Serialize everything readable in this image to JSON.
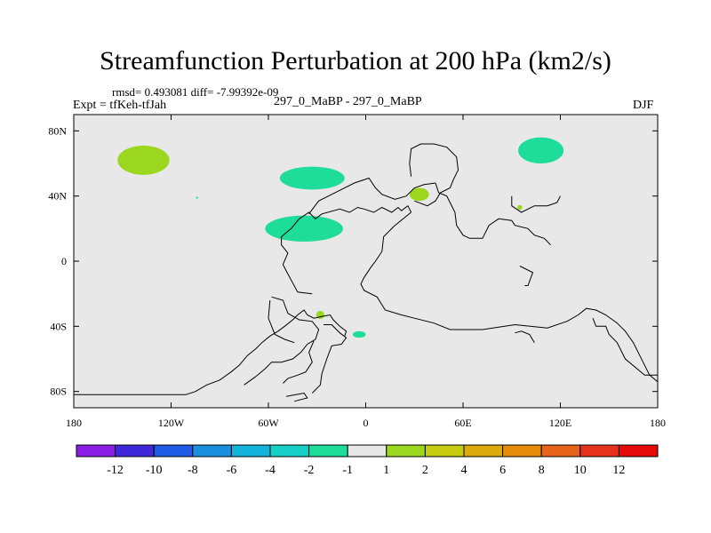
{
  "figure": {
    "title": "Streamfunction Perturbation at 200 hPa (km2/s)",
    "stats": "rmsd= 0.493081 diff= -7.99392e-09",
    "experiment": "Expt = tfKeh-tfJah",
    "runs": "297_0_MaBP - 297_0_MaBP",
    "season": "DJF"
  },
  "chart_data": {
    "type": "heatmap",
    "projection": "cylindrical-equidistant",
    "title": "Streamfunction Perturbation at 200 hPa (km2/s)",
    "xlim": [
      -180,
      180
    ],
    "ylim": [
      -90,
      90
    ],
    "x_ticks": [
      {
        "value": -180,
        "label": "180"
      },
      {
        "value": -120,
        "label": "120W"
      },
      {
        "value": -60,
        "label": "60W"
      },
      {
        "value": 0,
        "label": "0"
      },
      {
        "value": 60,
        "label": "60E"
      },
      {
        "value": 120,
        "label": "120E"
      },
      {
        "value": 180,
        "label": "180"
      }
    ],
    "y_ticks": [
      {
        "value": 80,
        "label": "80N"
      },
      {
        "value": 40,
        "label": "40N"
      },
      {
        "value": 0,
        "label": "0"
      },
      {
        "value": -40,
        "label": "40S"
      },
      {
        "value": -80,
        "label": "80S"
      }
    ],
    "background_color": "#e8e8e8",
    "colorbar": {
      "colors": [
        "#8a1ee6",
        "#3f28d9",
        "#1e5ae6",
        "#1a8fe0",
        "#12b4dc",
        "#16cfc6",
        "#1edc9a",
        "#e8e8e8",
        "#9ad71e",
        "#c8cc10",
        "#dcaa0a",
        "#e68c0a",
        "#e6641a",
        "#e6321a",
        "#e60a0a"
      ],
      "labels": [
        "-12",
        "-10",
        "-8",
        "-6",
        "-4",
        "-2",
        "-1",
        "1",
        "2",
        "4",
        "6",
        "8",
        "10",
        "12"
      ]
    },
    "anomalies": [
      {
        "lon": -137,
        "lat": 62,
        "rx": 16,
        "ry": 9,
        "level": "2",
        "color": "#9ad71e"
      },
      {
        "lon": -33,
        "lat": 51,
        "rx": 20,
        "ry": 7,
        "level": "-1",
        "color": "#1edc9a"
      },
      {
        "lon": -38,
        "lat": 20,
        "rx": 24,
        "ry": 8,
        "level": "-1",
        "color": "#1edc9a"
      },
      {
        "lon": 33,
        "lat": 41,
        "rx": 6,
        "ry": 4,
        "level": "2",
        "color": "#9ad71e"
      },
      {
        "lon": 108,
        "lat": 68,
        "rx": 14,
        "ry": 8,
        "level": "-1",
        "color": "#1edc9a"
      },
      {
        "lon": 95,
        "lat": 33,
        "rx": 1.5,
        "ry": 1.5,
        "level": "2",
        "color": "#9ad71e"
      },
      {
        "lon": -28,
        "lat": -33,
        "rx": 2.5,
        "ry": 2.5,
        "level": "2",
        "color": "#9ad71e"
      },
      {
        "lon": -4,
        "lat": -45,
        "rx": 4,
        "ry": 2,
        "level": "-1",
        "color": "#1edc9a"
      },
      {
        "lon": -104,
        "lat": 39,
        "rx": 0.7,
        "ry": 0.6,
        "level": "-1",
        "color": "#1edc9a"
      }
    ],
    "coastlines": [
      [
        [
          -180,
          -82
        ],
        [
          -111,
          -82
        ],
        [
          -105,
          -80
        ],
        [
          -98,
          -76
        ],
        [
          -90,
          -73
        ],
        [
          -83,
          -68
        ],
        [
          -78,
          -64
        ],
        [
          -73,
          -58
        ],
        [
          -68,
          -54
        ],
        [
          -64,
          -50
        ],
        [
          -59,
          -46
        ],
        [
          -54,
          -43
        ],
        [
          -50,
          -40
        ],
        [
          -45,
          -36
        ],
        [
          -42,
          -33
        ],
        [
          -38,
          -30
        ],
        [
          -36,
          -33
        ],
        [
          -32,
          -35
        ],
        [
          -27,
          -34
        ],
        [
          -22,
          -33
        ],
        [
          -20,
          -36
        ],
        [
          -16,
          -40
        ],
        [
          -12,
          -43
        ],
        [
          -13,
          -46
        ]
      ],
      [
        [
          -33,
          -20
        ],
        [
          -42,
          -19
        ],
        [
          -49,
          -6
        ],
        [
          -51,
          -2
        ],
        [
          -48,
          5
        ],
        [
          -52,
          10
        ],
        [
          -52,
          15
        ],
        [
          -46,
          20
        ],
        [
          -41,
          26
        ],
        [
          -35,
          30
        ],
        [
          -31,
          26
        ],
        [
          -27,
          29
        ],
        [
          -16,
          32
        ],
        [
          -10,
          30
        ],
        [
          -5,
          33
        ],
        [
          -1,
          32
        ],
        [
          5,
          30
        ],
        [
          10,
          33
        ],
        [
          16,
          30
        ],
        [
          20,
          33
        ],
        [
          22,
          31
        ],
        [
          26,
          34
        ],
        [
          28,
          30
        ]
      ],
      [
        [
          -35,
          29
        ],
        [
          -29,
          37
        ],
        [
          -17,
          43
        ],
        [
          -7,
          48
        ],
        [
          2,
          51
        ],
        [
          6,
          45
        ],
        [
          10,
          41
        ],
        [
          18,
          38
        ],
        [
          25,
          40
        ],
        [
          30,
          45
        ],
        [
          36,
          47
        ],
        [
          43,
          48
        ]
      ],
      [
        [
          28,
          30
        ],
        [
          18,
          22
        ],
        [
          11,
          15
        ],
        [
          10,
          6
        ],
        [
          6,
          0
        ],
        [
          3,
          -4
        ],
        [
          -1,
          -10
        ],
        [
          -3,
          -14
        ],
        [
          -1,
          -18
        ],
        [
          7,
          -22
        ],
        [
          12,
          -30
        ],
        [
          22,
          -33
        ],
        [
          30,
          -35
        ],
        [
          42,
          -38
        ],
        [
          52,
          -42
        ],
        [
          72,
          -42
        ],
        [
          92,
          -39
        ],
        [
          112,
          -41
        ],
        [
          124,
          -37
        ],
        [
          131,
          -33
        ],
        [
          136,
          -29
        ],
        [
          142,
          -30
        ],
        [
          148,
          -33
        ],
        [
          155,
          -38
        ],
        [
          160,
          -43
        ],
        [
          165,
          -50
        ],
        [
          171,
          -62
        ],
        [
          175,
          -70
        ],
        [
          180,
          -74
        ]
      ],
      [
        [
          28,
          52
        ],
        [
          27,
          60
        ],
        [
          28,
          69
        ],
        [
          34,
          72
        ],
        [
          42,
          72
        ],
        [
          50,
          70
        ],
        [
          56,
          64
        ],
        [
          57,
          56
        ],
        [
          54,
          50
        ],
        [
          52,
          45
        ],
        [
          46,
          42
        ],
        [
          43,
          37
        ],
        [
          38,
          34
        ],
        [
          30,
          37
        ]
      ],
      [
        [
          43,
          48
        ],
        [
          45,
          42
        ],
        [
          50,
          40
        ],
        [
          55,
          30
        ],
        [
          56,
          22
        ],
        [
          60,
          16
        ],
        [
          64,
          14
        ],
        [
          72,
          14
        ],
        [
          76,
          22
        ],
        [
          82,
          26
        ],
        [
          90,
          25
        ],
        [
          92,
          22
        ],
        [
          100,
          20
        ],
        [
          104,
          16
        ],
        [
          110,
          14
        ],
        [
          114,
          10
        ]
      ],
      [
        [
          90,
          40
        ],
        [
          90,
          34
        ],
        [
          96,
          30
        ],
        [
          104,
          34
        ],
        [
          112,
          34
        ],
        [
          118,
          36
        ],
        [
          120,
          40
        ]
      ],
      [
        [
          -58,
          -22
        ],
        [
          -51,
          -24
        ],
        [
          -48,
          -32
        ],
        [
          -41,
          -36
        ],
        [
          -33,
          -37
        ],
        [
          -29,
          -42
        ],
        [
          -31,
          -48
        ],
        [
          -36,
          -51
        ],
        [
          -40,
          -56
        ],
        [
          -45,
          -60
        ],
        [
          -52,
          -62
        ],
        [
          -58,
          -62
        ],
        [
          -62,
          -66
        ],
        [
          -68,
          -71
        ],
        [
          -75,
          -76
        ]
      ],
      [
        [
          -59,
          -24
        ],
        [
          -60,
          -35
        ],
        [
          -56,
          -45
        ],
        [
          -50,
          -48
        ],
        [
          -44,
          -50
        ]
      ],
      [
        [
          -26,
          -39
        ],
        [
          -21,
          -39
        ],
        [
          -16,
          -44
        ],
        [
          -12,
          -47
        ],
        [
          -15,
          -51
        ],
        [
          -21,
          -52
        ],
        [
          -24,
          -60
        ],
        [
          -27,
          -69
        ],
        [
          -28,
          -76
        ],
        [
          -33,
          -81
        ]
      ],
      [
        [
          -51,
          -75
        ],
        [
          -48,
          -72
        ],
        [
          -42,
          -70
        ],
        [
          -37,
          -68
        ],
        [
          -33,
          -62
        ],
        [
          -35,
          -56
        ],
        [
          -32,
          -49
        ]
      ],
      [
        [
          -49,
          -83
        ],
        [
          -38,
          -81
        ],
        [
          -36,
          -84
        ],
        [
          -44,
          -86
        ]
      ],
      [
        [
          104,
          -50
        ],
        [
          101,
          -45
        ],
        [
          96,
          -43
        ],
        [
          92,
          -44
        ]
      ],
      [
        [
          95,
          -3
        ],
        [
          103,
          -7
        ],
        [
          100,
          -15
        ],
        [
          98,
          -15
        ]
      ],
      [
        [
          140,
          -35
        ],
        [
          142,
          -40
        ],
        [
          148,
          -40
        ],
        [
          150,
          -45
        ],
        [
          155,
          -50
        ],
        [
          160,
          -60
        ],
        [
          172,
          -70
        ],
        [
          180,
          -70
        ]
      ]
    ]
  }
}
